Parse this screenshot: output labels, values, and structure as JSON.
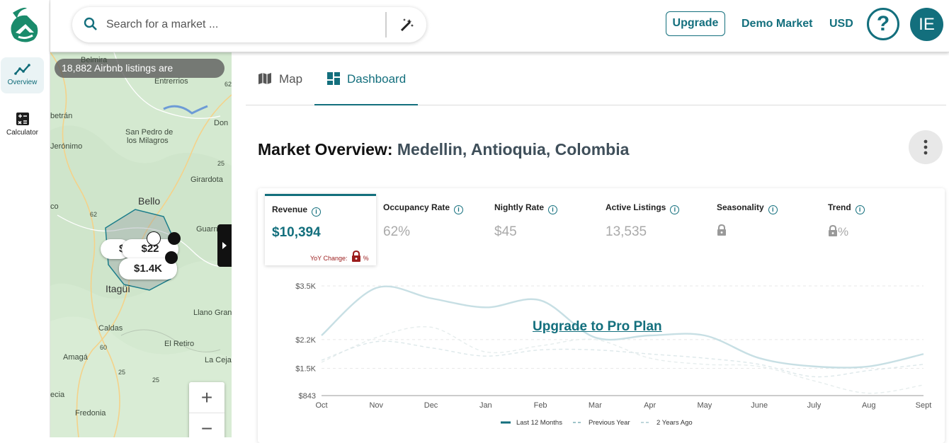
{
  "rail": {
    "items": [
      {
        "label": "Overview",
        "icon": "trend-chart-icon",
        "active": true
      },
      {
        "label": "Calculator",
        "icon": "calculator-icon",
        "active": false
      }
    ]
  },
  "search": {
    "placeholder": "Search for a market ...",
    "value": ""
  },
  "header": {
    "upgrade_label": "Upgrade",
    "demo_market_label": "Demo Market",
    "currency_label": "USD",
    "help_label": "?",
    "avatar_initials": "IE"
  },
  "map": {
    "listings_text": "18,882 Airbnb listings are",
    "labels": [
      "Belmira",
      "Entrerrios",
      "Don",
      "San Pedro de",
      "los Milagros",
      "Jerónimo",
      "Girardota",
      "Bello",
      "Guarn",
      "Itagüí",
      "Llano Gran",
      "Caldas",
      "El Retiro",
      "Amagá",
      "La Ceja",
      "Fredonia",
      "ecia",
      "betrán",
      "co"
    ],
    "road_numbers": [
      "62",
      "25",
      "62",
      "60",
      "25",
      "25"
    ],
    "price_pills": [
      "$",
      "$22",
      "$1.4K"
    ],
    "zoom_in": "+",
    "zoom_out": "−"
  },
  "tabs": [
    {
      "label": "Map",
      "icon": "map-icon",
      "active": false
    },
    {
      "label": "Dashboard",
      "icon": "dashboard-icon",
      "active": true
    }
  ],
  "overview": {
    "title_prefix": "Market Overview:",
    "location": "Medellin, Antioquia, Colombia"
  },
  "metrics": [
    {
      "label": "Revenue",
      "value": "$10,394",
      "active": true
    },
    {
      "label": "Occupancy Rate",
      "value": "62%"
    },
    {
      "label": "Nightly Rate",
      "value": "$45"
    },
    {
      "label": "Active Listings",
      "value": "13,535"
    },
    {
      "label": "Seasonality",
      "value": ""
    },
    {
      "label": "Trend",
      "value": "%"
    }
  ],
  "yoy": {
    "label": "YoY Change:",
    "suffix": "%"
  },
  "upgrade_overlay": "Upgrade to Pro Plan",
  "colors": {
    "brand": "#136f7d",
    "lock_red": "#9b1c1c"
  },
  "chart_data": {
    "type": "line",
    "categories": [
      "Oct",
      "Nov",
      "Dec",
      "Jan",
      "Feb",
      "Mar",
      "Apr",
      "May",
      "June",
      "July",
      "Aug",
      "Sept"
    ],
    "ytick_labels": [
      "$3.5K",
      "$2.2K",
      "$1.5K",
      "$843"
    ],
    "ylim": [
      843,
      3500
    ],
    "series": [
      {
        "name": "Last 12 Months",
        "values": [
          2300,
          3450,
          3200,
          2980,
          3150,
          2250,
          2300,
          2300,
          1750,
          1550,
          1550,
          1850
        ]
      },
      {
        "name": "Previous Year",
        "values": [
          1700,
          2150,
          2000,
          1800,
          1950,
          1950,
          1850,
          1750,
          1600,
          1300,
          1450,
          1600
        ]
      },
      {
        "name": "2 Years Ago",
        "values": [
          1650,
          2250,
          2500,
          1900,
          2050,
          2200,
          1750,
          1600,
          1550,
          1200,
          900,
          1100
        ]
      }
    ]
  }
}
